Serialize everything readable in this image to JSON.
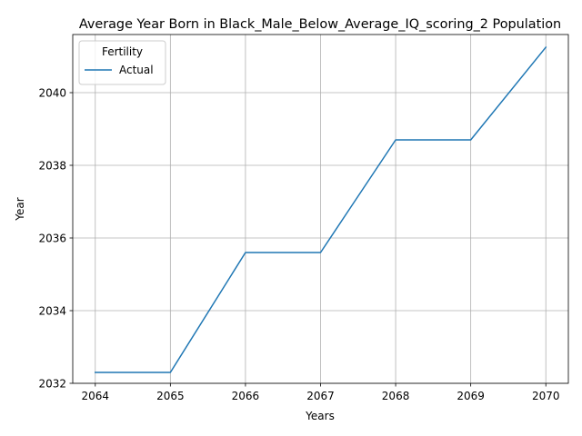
{
  "chart_data": {
    "type": "line",
    "title": "Average Year Born in Black_Male_Below_Average_IQ_scoring_2 Population",
    "xlabel": "Years",
    "ylabel": "Year",
    "x": [
      2064,
      2065,
      2066,
      2067,
      2068,
      2069,
      2070
    ],
    "series": [
      {
        "name": "Actual",
        "color": "#1f77b4",
        "values": [
          2032.3,
          2032.3,
          2035.6,
          2035.6,
          2038.7,
          2038.7,
          2041.25
        ]
      }
    ],
    "xlim": [
      2063.7,
      2070.3
    ],
    "ylim": [
      2032.0,
      2041.6
    ],
    "xticks": [
      "2064",
      "2065",
      "2066",
      "2067",
      "2068",
      "2069",
      "2070"
    ],
    "yticks": [
      "2032",
      "2034",
      "2036",
      "2038",
      "2040"
    ],
    "grid": true,
    "legend_title": "Fertility",
    "legend_position": "upper-left"
  }
}
